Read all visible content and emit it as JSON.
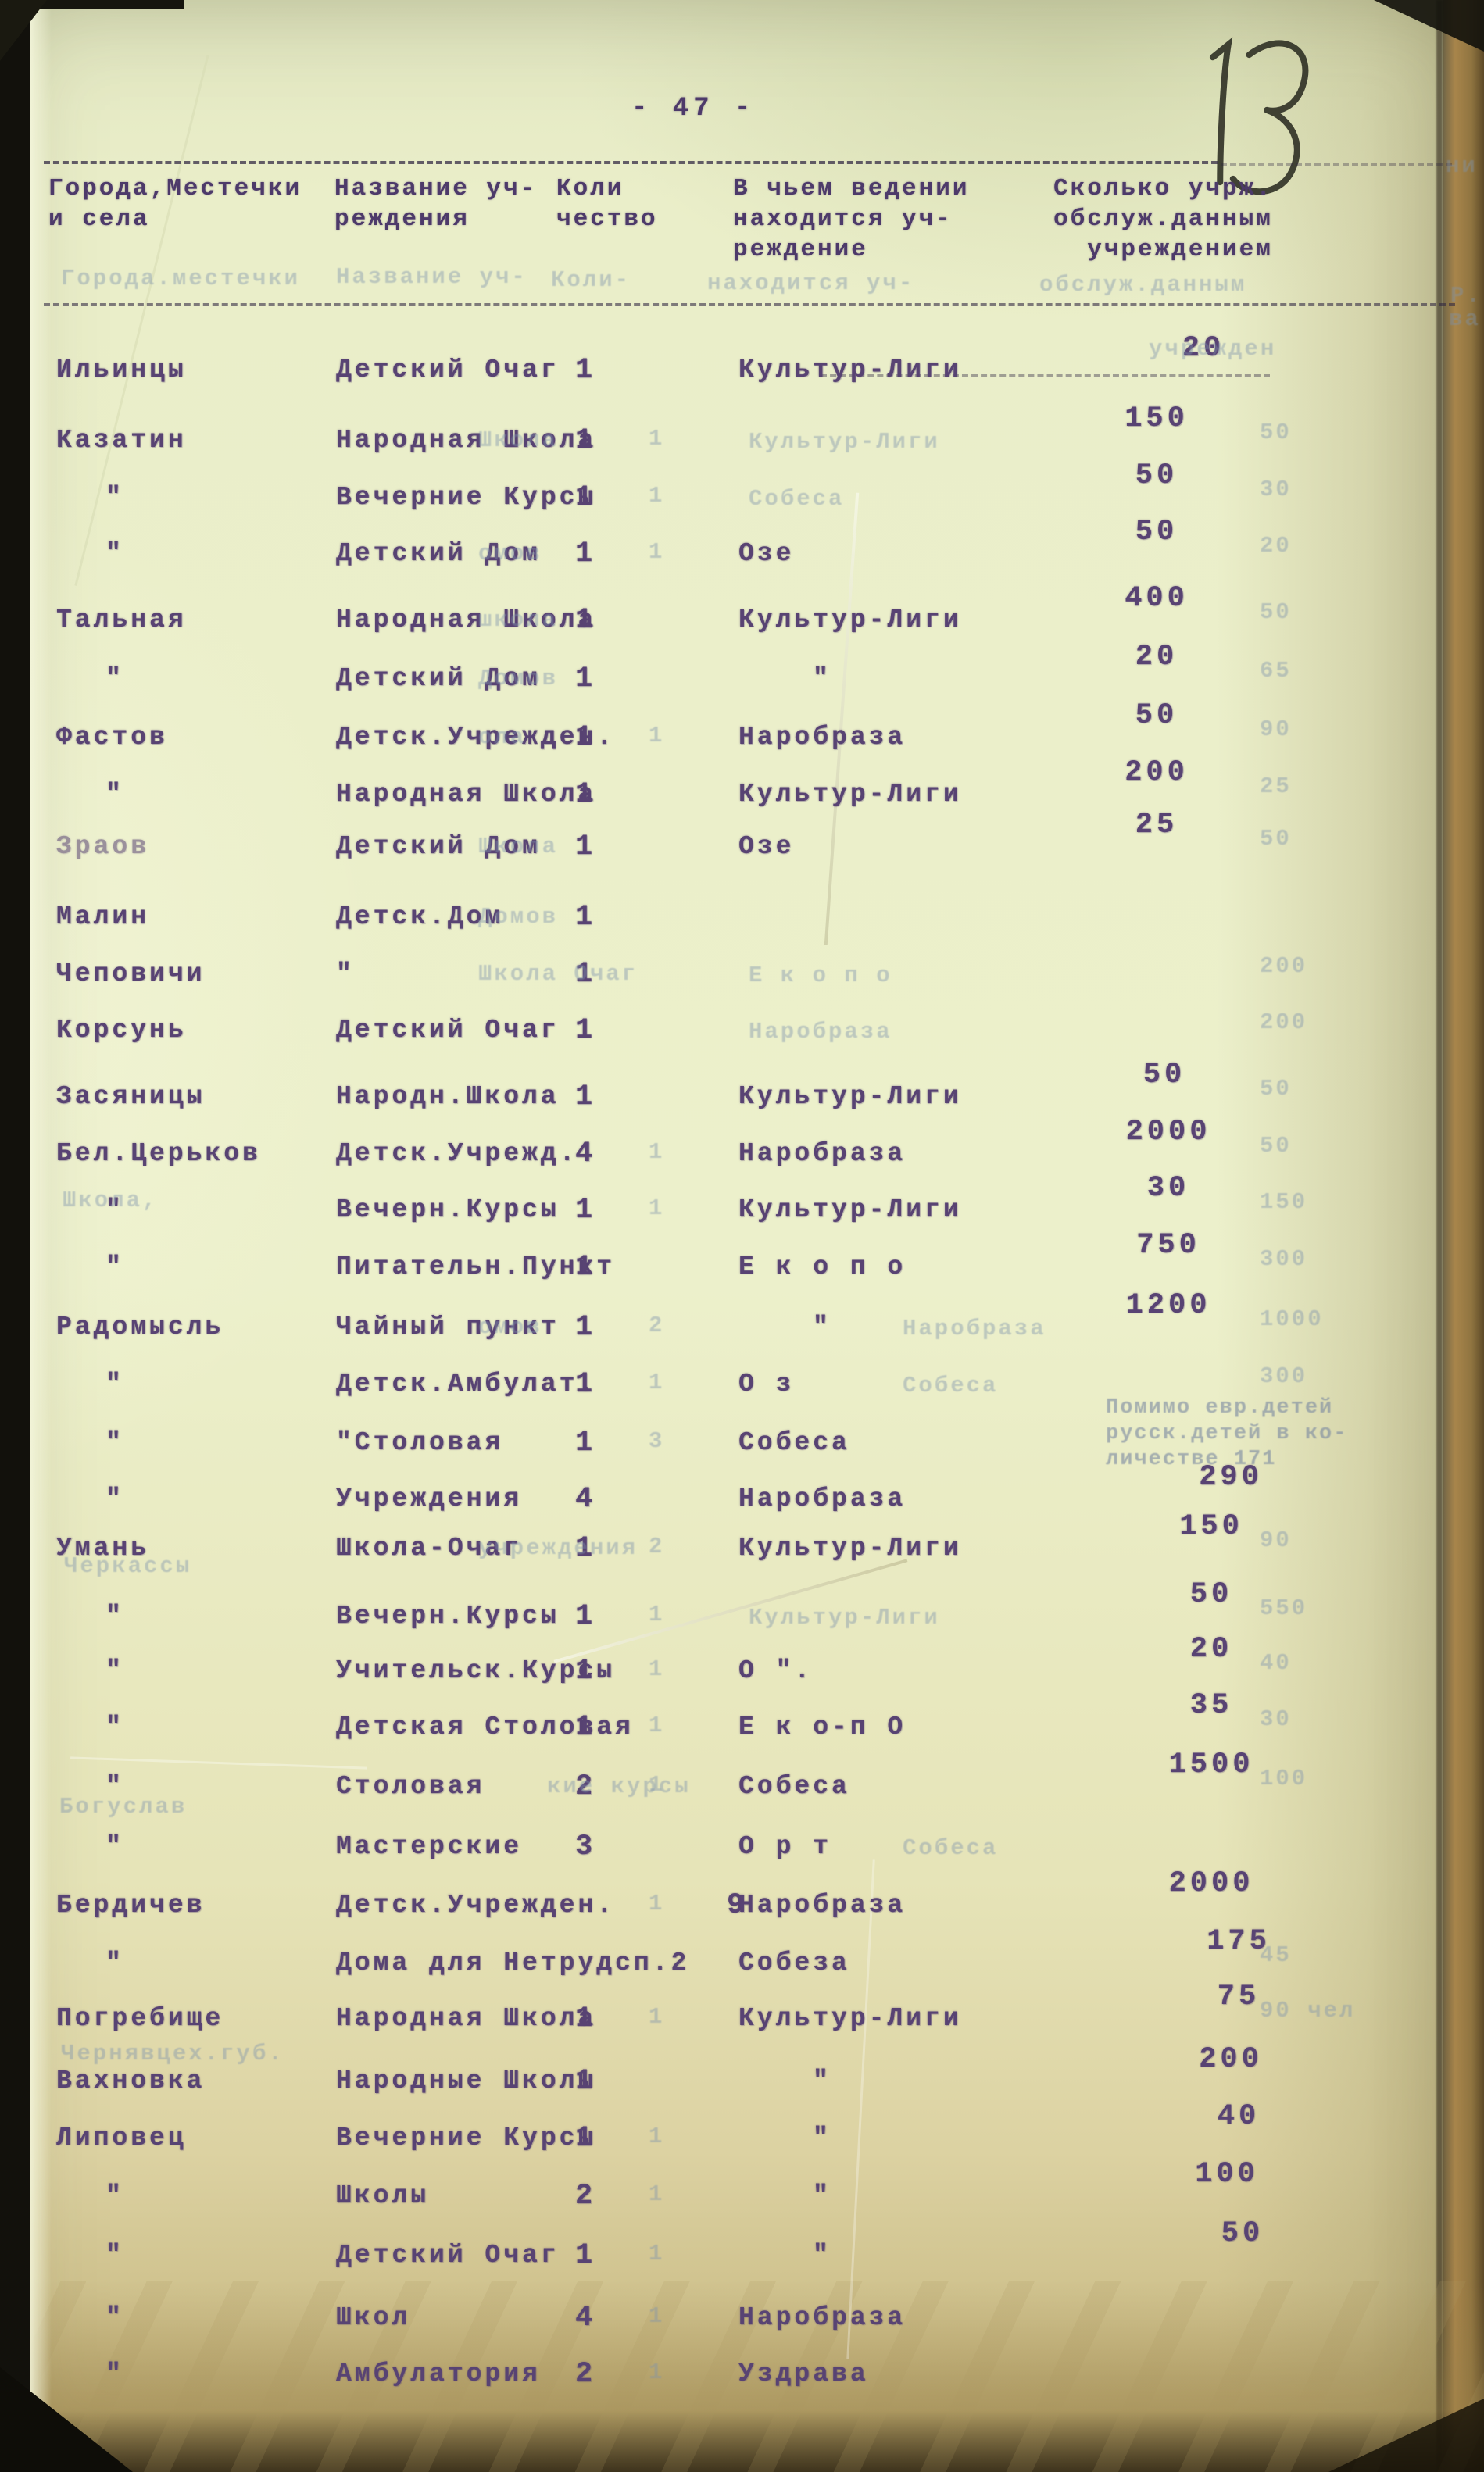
{
  "document": {
    "page_number": "- 47 -",
    "handwritten_note": "13",
    "header": {
      "col_place": "Города,Местечки\nи села",
      "col_institution": "Название уч-\nреждения",
      "col_quantity": "Коли\nчество",
      "col_jurisdiction": "В чьем ведении\nнаходится уч-\nреждение",
      "col_served": "Сколько учрж.\nобслуж.данным\nучреждением"
    },
    "annotation": "Помимо евр.детей\nрусск.детей в ко-\nличестве 171",
    "rows": [
      {
        "p": "Ильинцы",
        "i": "Детский Очаг",
        "q": "1",
        "j": "Культур-Лиги",
        "s": "20"
      },
      {
        "p": "Казатин",
        "i": "Народная Школа",
        "q": "1",
        "gq": "1",
        "gi": "Школа",
        "gj": "Культур-Лиги",
        "s": "150",
        "gs": "50"
      },
      {
        "p": "\"",
        "i": "Вечерние Курсы",
        "q": "1",
        "gq": "1",
        "gj": "Собеса",
        "s": "50",
        "gs": "30"
      },
      {
        "p": "\"",
        "i": "Детский Дом",
        "q": "1",
        "gq": "1",
        "gi": "омов",
        "j": "Озе",
        "s": "50",
        "gs": "20"
      },
      {
        "p": "Тальная",
        "i": "Народная Школа",
        "q": "1",
        "gi": "школа",
        "j": "Культур-Лиги",
        "s": "400",
        "gs": "50"
      },
      {
        "p": "\"",
        "i": "Детский Дом",
        "q": "1",
        "gi": "Домов",
        "j": "\"",
        "s": "20",
        "gs": "65"
      },
      {
        "p": "Фастов",
        "i": "Детск.Учрежден.",
        "q": "1",
        "gq": "1",
        "gi": "ола",
        "j": "Наробраза",
        "s": "50",
        "gs": "90"
      },
      {
        "p": "\"",
        "i": "Народная Школа",
        "q": "1",
        "j": "Культур-Лиги",
        "s": "200",
        "gs": "25"
      },
      {
        "p": "Зраов",
        "pf": 1,
        "i": "Детский Дом",
        "q": "1",
        "gi": "Школа",
        "j": "Озе",
        "s": "25",
        "gs": "50"
      },
      {
        "p": "Малин",
        "i": "Детск.Дом",
        "q": "1",
        "gi": "Домов"
      },
      {
        "p": "Чеповичи",
        "i": "\"",
        "q": "1",
        "gi": "Школа Очаг",
        "gj": "Е к о п о",
        "gs": "200"
      },
      {
        "p": "Корсунь",
        "i": "Детский Очаг",
        "q": "1",
        "gj": "Наробраза",
        "gs": "200"
      },
      {
        "p": "Засяницы",
        "i": "Народн.Школа",
        "q": "1",
        "j": "Культур-Лиги",
        "s": "50",
        "gs": "50"
      },
      {
        "p": "Бел.Церьков",
        "i": "Детск.Учрежд.",
        "q": "4",
        "gq": "1",
        "j": "Наробраза",
        "s": "2000",
        "gs": "50"
      },
      {
        "p": "\"",
        "i": "Вечерн.Курсы",
        "q": "1",
        "gq": "1",
        "j": "Культур-Лиги",
        "s": "30",
        "gs": "150"
      },
      {
        "p": "\"",
        "i": "Питательн.Пункт",
        "q": "1",
        "j": "Е к о п о",
        "s": "750",
        "gs": "300"
      },
      {
        "p": "Радомысль",
        "i": "Чайный пункт",
        "q": "1",
        "gq": "2",
        "gi": "омов",
        "j": "\"",
        "gj": "Наробраза",
        "s": "1200",
        "gs": "1000"
      },
      {
        "p": "\"",
        "i": "Детск.Амбулат.",
        "q": "1",
        "gq": "1",
        "j": "О з",
        "gj": "Собеса",
        "gs": "300"
      },
      {
        "p": "\"",
        "i": "\"Столовая",
        "q": "1",
        "gq": "3",
        "j": "Собеса"
      },
      {
        "p": "\"",
        "i": "Учреждения",
        "q": "4",
        "j": "Наробраза",
        "s": "290"
      },
      {
        "p": "Умань",
        "i": "Школа-Очаг",
        "q": "1",
        "gq": "2",
        "gi": "учреждения",
        "j": "Культур-Лиги",
        "s": "150",
        "gs": "90"
      },
      {
        "p": "\"",
        "i": "Вечерн.Курсы",
        "q": "1",
        "gq": "1",
        "gj": "Культур-Лиги",
        "s": "50",
        "gs": "550"
      },
      {
        "p": "\"",
        "i": "Учительск.Курсы",
        "q": "1",
        "gq": "1",
        "j": "О \".",
        "s": "20",
        "gs": "40"
      },
      {
        "p": "\"",
        "i": "Детская Столовая",
        "q": "1",
        "gq": "1",
        "j": "Е к о-п О",
        "s": "35",
        "gs": "30"
      },
      {
        "p": "\"",
        "i": "Столовая",
        "q": "2",
        "gq": "1",
        "gi": "кие курсы",
        "j": "Собеса",
        "s": "1500",
        "gs": "100"
      },
      {
        "p": "\"",
        "i": "Мастерские",
        "q": "3",
        "j": "О р т",
        "gj": "Собеса"
      },
      {
        "p": "Бердичев",
        "i": "Детск.Учрежден.",
        "q": "9",
        "gq": "1",
        "j": "Наробраза",
        "s": "2000"
      },
      {
        "p": "\"",
        "i": "Дома для Нетрудсп.2",
        "q": "",
        "j": "Собеза",
        "s": "175",
        "gs": "45"
      },
      {
        "p": "Погребище",
        "i": "Народная Школа",
        "q": "1",
        "gq": "1",
        "j": "Культур-Лиги",
        "s": "75",
        "gs": "90 чел"
      },
      {
        "p": "Вахновка",
        "i": "Народные Школы",
        "q": "1",
        "j": "\"",
        "s": "200"
      },
      {
        "p": "Липовец",
        "i": "Вечерние Курсы",
        "q": "1",
        "gq": "1",
        "j": "\"",
        "s": "40"
      },
      {
        "p": "\"",
        "i": "Школы",
        "q": "2",
        "gq": "1",
        "j": "\"",
        "s": "100"
      },
      {
        "p": "\"",
        "i": "Детский Очаг",
        "q": "1",
        "gq": "1",
        "j": "\"",
        "s": "50"
      },
      {
        "p": "\"",
        "i": "Школ",
        "q": "4",
        "gq": "1",
        "j": "Наробраза",
        "s": ""
      },
      {
        "p": "\"",
        "i": "Амбулатория",
        "q": "2",
        "gq": "1",
        "j": "Уздрава",
        "s": ""
      }
    ],
    "ghosts": [
      "Города.местечки",
      "Название уч-",
      "Коли-",
      "находится уч-",
      "обслуж.данным",
      "учрежден",
      "Школа,",
      "Черкассы",
      "Богуслав",
      "Чернявцех.губ.",
      "Р.",
      "ва",
      "ни"
    ]
  }
}
